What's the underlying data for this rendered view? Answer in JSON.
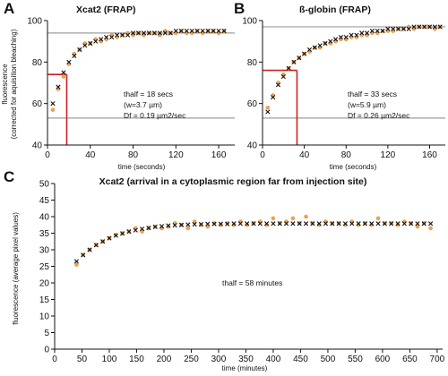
{
  "chart_data": [
    {
      "panel": "A",
      "type": "scatter",
      "title": "Xcat2 (FRAP)",
      "xlabel": "time (seconds)",
      "ylabel": "fluorescence",
      "ylabel2": "(corrected for aquisition bleaching)",
      "xlim": [
        0,
        175
      ],
      "ylim": [
        40,
        100
      ],
      "xticks": [
        0,
        40,
        80,
        120,
        160
      ],
      "yticks": [
        40,
        60,
        80,
        100
      ],
      "annotations": [
        "thalf = 18 secs",
        "(w=3.7 µm)",
        "Df = 0.19 µm2/sec"
      ],
      "hlines": [
        {
          "y": 94,
          "color": "#9e9e9e"
        },
        {
          "y": 53,
          "color": "#9e9e9e"
        }
      ],
      "half_marker": {
        "x": 18,
        "y": 74,
        "color": "#cc2222"
      },
      "series": [
        {
          "marker": "circle",
          "color": "#f0a050",
          "x": [
            5,
            10,
            15,
            20,
            25,
            30,
            35,
            40,
            45,
            50,
            55,
            60,
            65,
            70,
            75,
            80,
            85,
            90,
            95,
            100,
            105,
            110,
            115,
            120,
            125,
            130,
            135,
            140,
            145,
            150,
            155,
            160,
            165
          ],
          "y": [
            57,
            67,
            73,
            79,
            84,
            86,
            89,
            89,
            91,
            90,
            91,
            93,
            92,
            93,
            94,
            93,
            94,
            93,
            94,
            94,
            93,
            95,
            94,
            94,
            95,
            94,
            94,
            95,
            94,
            95,
            95,
            94,
            95
          ]
        },
        {
          "marker": "cross",
          "color": "#111111",
          "x": [
            5,
            10,
            15,
            20,
            25,
            30,
            35,
            40,
            45,
            50,
            55,
            60,
            65,
            70,
            75,
            80,
            85,
            90,
            95,
            100,
            105,
            110,
            115,
            120,
            125,
            130,
            135,
            140,
            145,
            150,
            155,
            160,
            165
          ],
          "y": [
            60,
            68,
            75,
            80,
            83,
            86,
            88,
            89,
            90,
            91,
            92,
            92,
            93,
            93,
            93,
            94,
            94,
            94,
            94,
            94,
            94,
            94,
            94,
            95,
            95,
            95,
            95,
            95,
            95,
            95,
            95,
            95,
            95
          ]
        }
      ]
    },
    {
      "panel": "B",
      "type": "scatter",
      "title": "ß-globin (FRAP)",
      "xlabel": "time (seconds)",
      "xlim": [
        0,
        175
      ],
      "ylim": [
        40,
        100
      ],
      "xticks": [
        0,
        40,
        80,
        120,
        160
      ],
      "yticks": [
        40,
        60,
        80,
        100
      ],
      "annotations": [
        "thalf = 33 secs",
        "(w=5.9 µm)",
        "Df = 0.26 µm2/sec"
      ],
      "hlines": [
        {
          "y": 97,
          "color": "#9e9e9e"
        },
        {
          "y": 53,
          "color": "#9e9e9e"
        }
      ],
      "half_marker": {
        "x": 33,
        "y": 76,
        "color": "#cc2222"
      },
      "series": [
        {
          "marker": "circle",
          "color": "#f0a050",
          "x": [
            5,
            10,
            15,
            20,
            25,
            30,
            35,
            40,
            45,
            50,
            55,
            60,
            65,
            70,
            75,
            80,
            85,
            90,
            95,
            100,
            105,
            110,
            115,
            120,
            125,
            130,
            135,
            140,
            145,
            150,
            155,
            160,
            165,
            170
          ],
          "y": [
            58,
            64,
            70,
            74,
            77,
            80,
            82,
            84,
            85,
            87,
            87,
            89,
            89,
            90,
            91,
            91,
            92,
            92,
            93,
            93,
            94,
            94,
            95,
            95,
            95,
            96,
            96,
            97,
            96,
            97,
            97,
            97,
            96,
            97
          ]
        },
        {
          "marker": "cross",
          "color": "#111111",
          "x": [
            5,
            10,
            15,
            20,
            25,
            30,
            35,
            40,
            45,
            50,
            55,
            60,
            65,
            70,
            75,
            80,
            85,
            90,
            95,
            100,
            105,
            110,
            115,
            120,
            125,
            130,
            135,
            140,
            145,
            150,
            155,
            160,
            165,
            170
          ],
          "y": [
            56,
            63,
            69,
            73,
            77,
            80,
            82,
            84,
            86,
            87,
            88,
            89,
            90,
            91,
            92,
            92,
            93,
            93,
            94,
            94,
            95,
            95,
            95,
            96,
            96,
            96,
            96,
            96,
            97,
            97,
            97,
            97,
            97,
            97
          ]
        }
      ]
    },
    {
      "panel": "C",
      "type": "scatter",
      "title": "Xcat2 (arrival in a cytoplasmic region far from injection site)",
      "xlabel": "time (minutes)",
      "ylabel": "fluorescence (average pixel values)",
      "xlim": [
        0,
        710
      ],
      "ylim": [
        0,
        50
      ],
      "xticks": [
        0,
        50,
        100,
        150,
        200,
        250,
        300,
        350,
        400,
        450,
        500,
        550,
        600,
        650,
        700
      ],
      "yticks": [
        0,
        5,
        10,
        15,
        20,
        25,
        30,
        35,
        40,
        45,
        50
      ],
      "annotations": [
        "thalf = 58 minutes"
      ],
      "series": [
        {
          "marker": "circle",
          "color": "#f0a050",
          "x": [
            40,
            52,
            64,
            76,
            88,
            100,
            112,
            124,
            136,
            148,
            160,
            172,
            184,
            196,
            208,
            220,
            232,
            244,
            256,
            268,
            280,
            292,
            304,
            316,
            328,
            340,
            352,
            364,
            376,
            388,
            400,
            412,
            424,
            436,
            448,
            460,
            472,
            484,
            496,
            508,
            520,
            532,
            544,
            556,
            568,
            580,
            592,
            604,
            616,
            628,
            640,
            652,
            664,
            676,
            688
          ],
          "y": [
            25.5,
            28.5,
            30,
            31.5,
            32.5,
            33.5,
            34.5,
            35,
            35.5,
            36.5,
            35.5,
            36.5,
            37,
            36.5,
            37,
            38,
            37.5,
            36.5,
            38.5,
            37.5,
            37,
            38,
            37.5,
            38,
            37.5,
            38.5,
            37.5,
            38,
            38.5,
            37.5,
            39.5,
            38,
            38.5,
            39.5,
            38,
            40,
            38,
            37.5,
            38.5,
            38,
            38,
            37.5,
            38.5,
            37.5,
            38,
            37.5,
            39.5,
            38,
            38,
            37.5,
            38.5,
            38,
            37,
            38,
            36.5
          ]
        },
        {
          "marker": "cross",
          "color": "#111111",
          "x": [
            40,
            52,
            64,
            76,
            88,
            100,
            112,
            124,
            136,
            148,
            160,
            172,
            184,
            196,
            208,
            220,
            232,
            244,
            256,
            268,
            280,
            292,
            304,
            316,
            328,
            340,
            352,
            364,
            376,
            388,
            400,
            412,
            424,
            436,
            448,
            460,
            472,
            484,
            496,
            508,
            520,
            532,
            544,
            556,
            568,
            580,
            592,
            604,
            616,
            628,
            640,
            652,
            664,
            676,
            688
          ],
          "y": [
            26.5,
            28.4,
            30,
            31.4,
            32.5,
            33.5,
            34.3,
            34.9,
            35.5,
            35.9,
            36.3,
            36.6,
            36.9,
            37.1,
            37.3,
            37.4,
            37.5,
            37.6,
            37.7,
            37.7,
            37.8,
            37.8,
            37.8,
            37.8,
            37.9,
            37.9,
            37.9,
            37.9,
            37.9,
            37.9,
            37.9,
            37.9,
            37.9,
            37.9,
            37.9,
            37.9,
            37.9,
            37.9,
            37.9,
            37.9,
            37.9,
            37.9,
            37.9,
            37.9,
            37.9,
            37.9,
            37.9,
            37.9,
            37.9,
            37.9,
            37.9,
            37.9,
            37.9,
            37.9,
            37.9
          ]
        }
      ]
    }
  ]
}
